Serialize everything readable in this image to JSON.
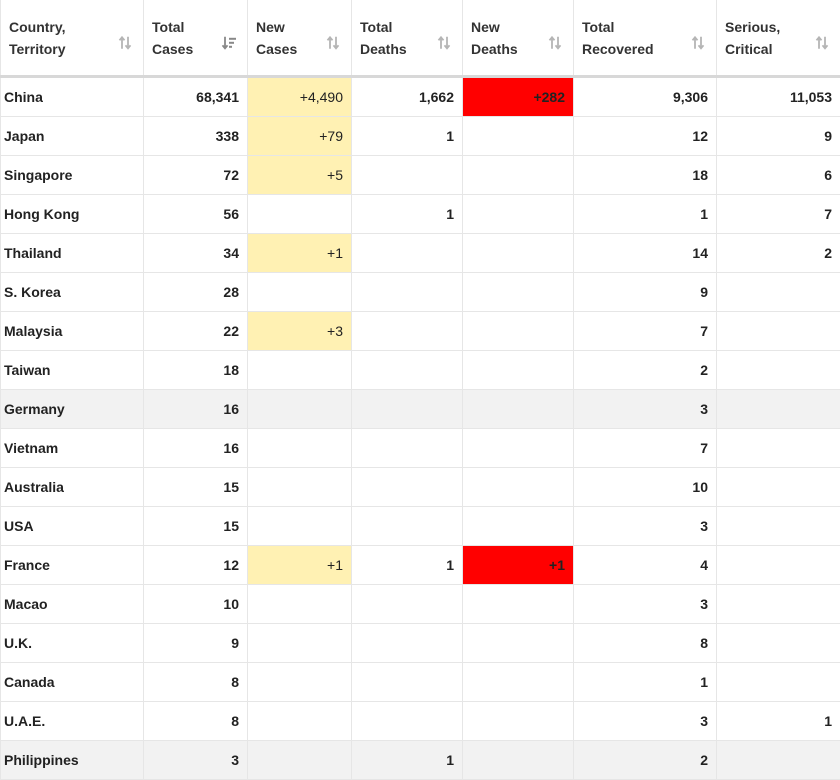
{
  "table": {
    "headers": [
      {
        "line1": "Country,",
        "line2": "Territory"
      },
      {
        "line1": "Total",
        "line2": "Cases"
      },
      {
        "line1": "New",
        "line2": "Cases"
      },
      {
        "line1": "Total",
        "line2": "Deaths"
      },
      {
        "line1": "New",
        "line2": "Deaths"
      },
      {
        "line1": "Total",
        "line2": "Recovered"
      },
      {
        "line1": "Serious,",
        "line2": "Critical"
      }
    ],
    "sort_icons": [
      "sort-both-icon",
      "sort-descending-icon",
      "sort-both-icon",
      "sort-both-icon",
      "sort-both-icon",
      "sort-both-icon",
      "sort-both-icon"
    ],
    "rows": [
      {
        "country": "China",
        "total_cases": "68,341",
        "new_cases": "+4,490",
        "total_deaths": "1,662",
        "new_deaths": "+282",
        "total_recovered": "9,306",
        "serious": "11,053"
      },
      {
        "country": "Japan",
        "total_cases": "338",
        "new_cases": "+79",
        "total_deaths": "1",
        "new_deaths": "",
        "total_recovered": "12",
        "serious": "9"
      },
      {
        "country": "Singapore",
        "total_cases": "72",
        "new_cases": "+5",
        "total_deaths": "",
        "new_deaths": "",
        "total_recovered": "18",
        "serious": "6"
      },
      {
        "country": "Hong Kong",
        "total_cases": "56",
        "new_cases": "",
        "total_deaths": "1",
        "new_deaths": "",
        "total_recovered": "1",
        "serious": "7"
      },
      {
        "country": "Thailand",
        "total_cases": "34",
        "new_cases": "+1",
        "total_deaths": "",
        "new_deaths": "",
        "total_recovered": "14",
        "serious": "2"
      },
      {
        "country": "S. Korea",
        "total_cases": "28",
        "new_cases": "",
        "total_deaths": "",
        "new_deaths": "",
        "total_recovered": "9",
        "serious": ""
      },
      {
        "country": "Malaysia",
        "total_cases": "22",
        "new_cases": "+3",
        "total_deaths": "",
        "new_deaths": "",
        "total_recovered": "7",
        "serious": ""
      },
      {
        "country": "Taiwan",
        "total_cases": "18",
        "new_cases": "",
        "total_deaths": "",
        "new_deaths": "",
        "total_recovered": "2",
        "serious": ""
      },
      {
        "country": "Germany",
        "total_cases": "16",
        "new_cases": "",
        "total_deaths": "",
        "new_deaths": "",
        "total_recovered": "3",
        "serious": "",
        "shaded": true
      },
      {
        "country": "Vietnam",
        "total_cases": "16",
        "new_cases": "",
        "total_deaths": "",
        "new_deaths": "",
        "total_recovered": "7",
        "serious": ""
      },
      {
        "country": "Australia",
        "total_cases": "15",
        "new_cases": "",
        "total_deaths": "",
        "new_deaths": "",
        "total_recovered": "10",
        "serious": ""
      },
      {
        "country": "USA",
        "total_cases": "15",
        "new_cases": "",
        "total_deaths": "",
        "new_deaths": "",
        "total_recovered": "3",
        "serious": ""
      },
      {
        "country": "France",
        "total_cases": "12",
        "new_cases": "+1",
        "total_deaths": "1",
        "new_deaths": "+1",
        "total_recovered": "4",
        "serious": ""
      },
      {
        "country": "Macao",
        "total_cases": "10",
        "new_cases": "",
        "total_deaths": "",
        "new_deaths": "",
        "total_recovered": "3",
        "serious": ""
      },
      {
        "country": "U.K.",
        "total_cases": "9",
        "new_cases": "",
        "total_deaths": "",
        "new_deaths": "",
        "total_recovered": "8",
        "serious": ""
      },
      {
        "country": "Canada",
        "total_cases": "8",
        "new_cases": "",
        "total_deaths": "",
        "new_deaths": "",
        "total_recovered": "1",
        "serious": ""
      },
      {
        "country": "U.A.E.",
        "total_cases": "8",
        "new_cases": "",
        "total_deaths": "",
        "new_deaths": "",
        "total_recovered": "3",
        "serious": "1"
      },
      {
        "country": "Philippines",
        "total_cases": "3",
        "new_cases": "",
        "total_deaths": "1",
        "new_deaths": "",
        "total_recovered": "2",
        "serious": "",
        "shaded": true
      }
    ]
  },
  "colors": {
    "new_cases_highlight": "#fff1b3",
    "new_deaths_highlight": "#ff0000",
    "shaded_row": "#f2f2f2",
    "sort_icon": "#b5b5b5",
    "sort_icon_active": "#888888"
  }
}
